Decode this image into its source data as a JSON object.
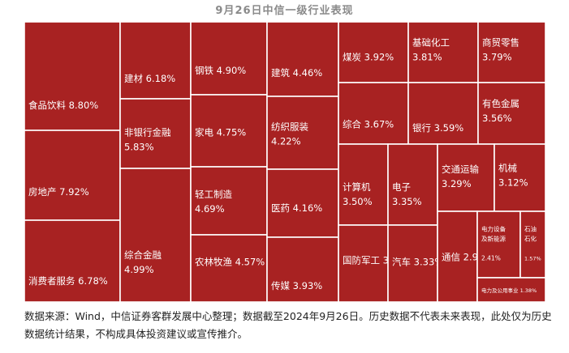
{
  "chart_data": {
    "type": "treemap",
    "title": "9月26日中信一级行业表现",
    "colors": {
      "tile": "#a82222",
      "border": "#ffffff",
      "label": "#ffffff"
    },
    "items": [
      {
        "name": "食品饮料",
        "value": 8.8,
        "label": "8.80%"
      },
      {
        "name": "房地产",
        "value": 7.92,
        "label": "7.92%"
      },
      {
        "name": "消费者服务",
        "value": 6.78,
        "label": "6.78%"
      },
      {
        "name": "建材",
        "value": 6.18,
        "label": "6.18%"
      },
      {
        "name": "非银行金融",
        "value": 5.83,
        "label": "5.83%"
      },
      {
        "name": "综合金融",
        "value": 4.99,
        "label": "4.99%"
      },
      {
        "name": "钢铁",
        "value": 4.9,
        "label": "4.90%"
      },
      {
        "name": "家电",
        "value": 4.75,
        "label": "4.75%"
      },
      {
        "name": "轻工制造",
        "value": 4.69,
        "label": "4.69%"
      },
      {
        "name": "农林牧渔",
        "value": 4.57,
        "label": "4.57%"
      },
      {
        "name": "建筑",
        "value": 4.46,
        "label": "4.46%"
      },
      {
        "name": "纺织服装",
        "value": 4.22,
        "label": "4.22%"
      },
      {
        "name": "医药",
        "value": 4.16,
        "label": "4.16%"
      },
      {
        "name": "传媒",
        "value": 3.93,
        "label": "3.93%"
      },
      {
        "name": "煤炭",
        "value": 3.92,
        "label": "3.92%"
      },
      {
        "name": "综合",
        "value": 3.67,
        "label": "3.67%"
      },
      {
        "name": "基础化工",
        "value": 3.81,
        "label": "3.81%"
      },
      {
        "name": "银行",
        "value": 3.59,
        "label": "3.59%"
      },
      {
        "name": "商贸零售",
        "value": 3.79,
        "label": "3.79%"
      },
      {
        "name": "有色金属",
        "value": 3.56,
        "label": "3.56%"
      },
      {
        "name": "计算机",
        "value": 3.5,
        "label": "3.50%"
      },
      {
        "name": "国防军工",
        "value": 3.44,
        "label": "3.44%"
      },
      {
        "name": "电子",
        "value": 3.35,
        "label": "3.35%"
      },
      {
        "name": "汽车",
        "value": 3.33,
        "label": "3.33%"
      },
      {
        "name": "交通运输",
        "value": 3.29,
        "label": "3.29%"
      },
      {
        "name": "通信",
        "value": 2.9,
        "label": "2.90%"
      },
      {
        "name": "机械",
        "value": 3.12,
        "label": "3.12%"
      },
      {
        "name": "电力设备及新能源",
        "value": 2.41,
        "label": "2.41%"
      },
      {
        "name": "石油石化",
        "value": 1.57,
        "label": "1.57%"
      },
      {
        "name": "电力及公用事业",
        "value": 1.38,
        "label": "1.38%"
      }
    ]
  },
  "source_note": "数据来源：Wind，中信证券客群发展中心整理；数据截至2024年9月26日。历史数据不代表未来表现，此处仅为历史数据统计结果，不构成具体投资建议或宣传推介。"
}
